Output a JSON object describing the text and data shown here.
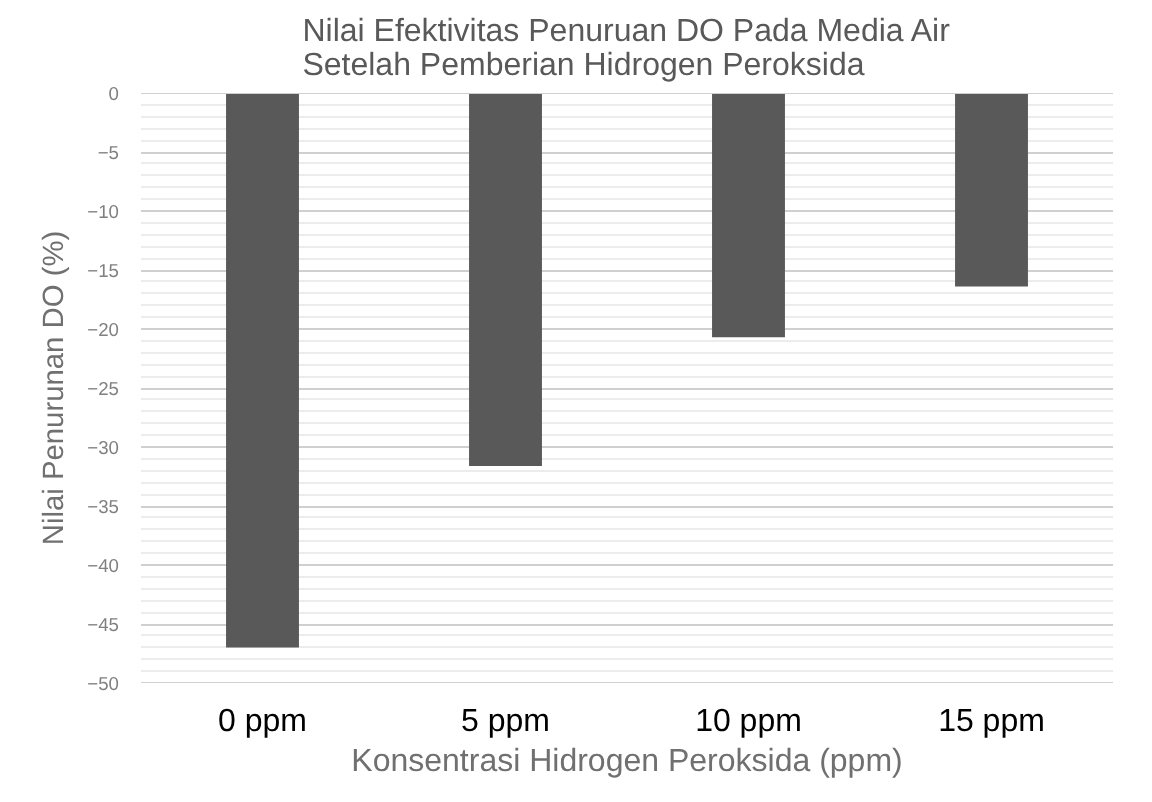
{
  "chart_data": {
    "type": "bar",
    "title": "Nilai Efektivitas Penuruan DO Pada Media Air\nSetelah Pemberian Hidrogen Peroksida",
    "xlabel": "Konsentrasi Hidrogen Peroksida (ppm)",
    "ylabel": "Nilai Penurunan DO (%)",
    "categories": [
      "0 ppm",
      "5 ppm",
      "10 ppm",
      "15 ppm"
    ],
    "values": [
      -47.0,
      -31.6,
      -20.7,
      -16.4
    ],
    "color": "#595959",
    "ylim": [
      -50,
      0
    ],
    "yticks": [
      -50,
      -45,
      -40,
      -35,
      -30,
      -25,
      -20,
      -15,
      -10,
      -5,
      0
    ],
    "grid": "y"
  }
}
